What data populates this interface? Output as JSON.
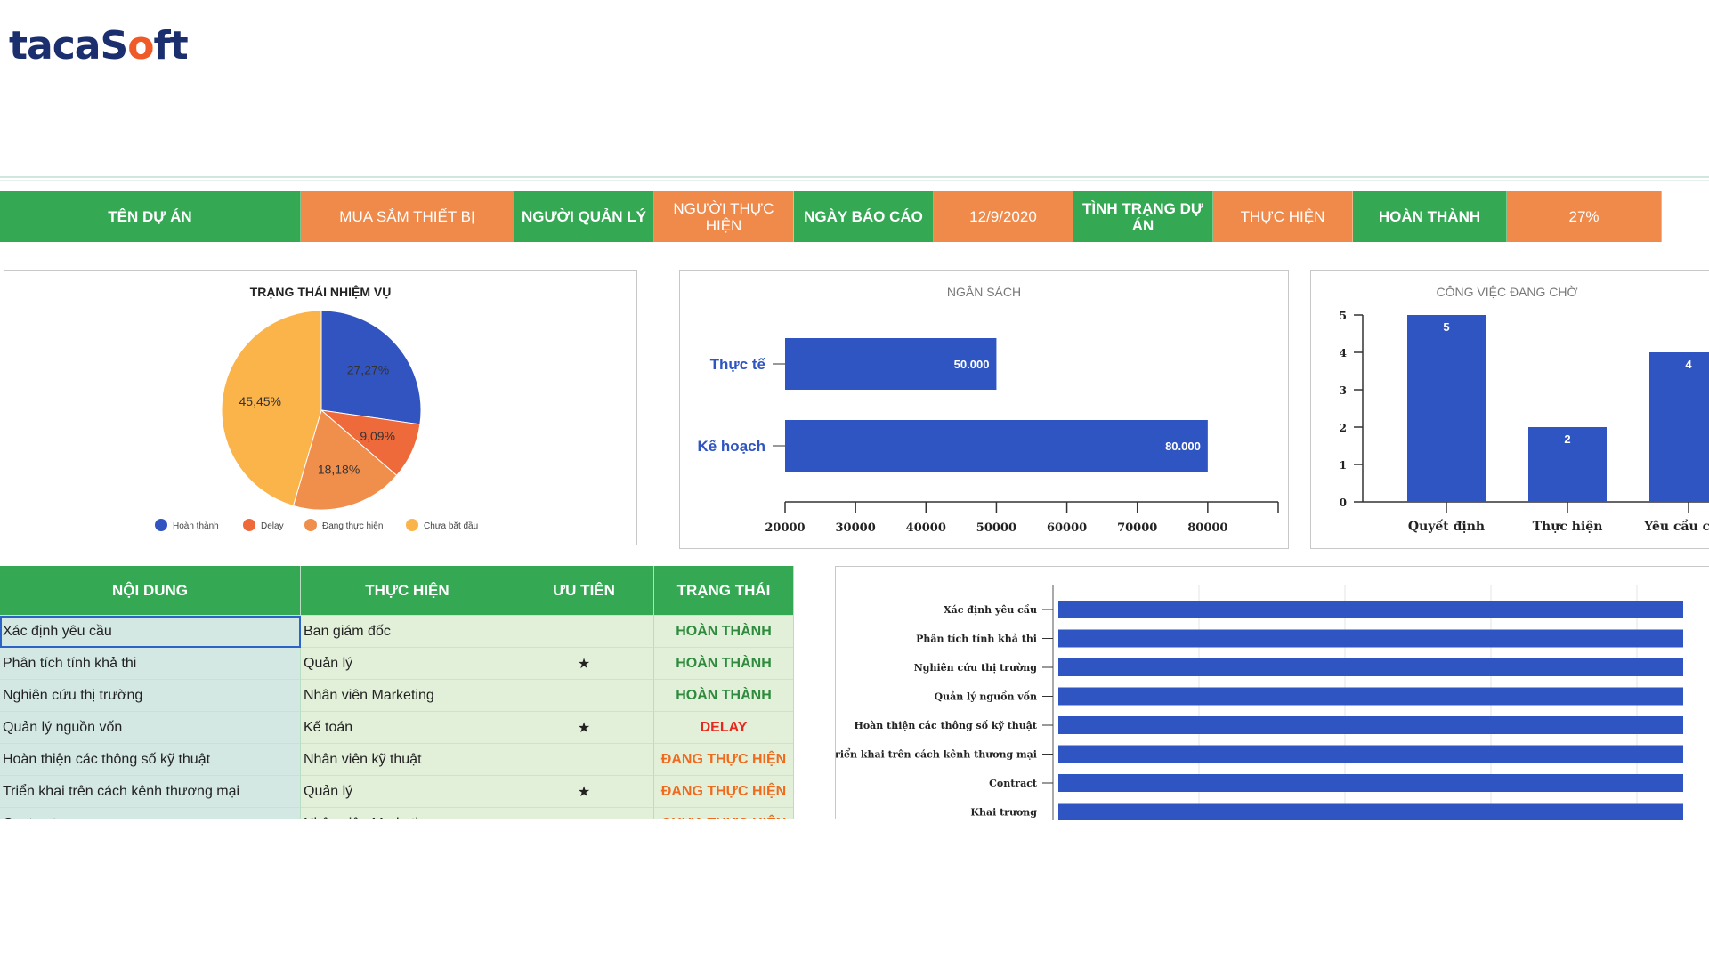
{
  "brand": {
    "logo_part1": "taca",
    "logo_part2": "S",
    "logo_o": "o",
    "logo_part3": "ft"
  },
  "header": [
    {
      "label": "TÊN DỰ ÁN",
      "style": "green",
      "w": 338
    },
    {
      "label": "MUA SẮM THIẾT BỊ",
      "style": "orange",
      "w": 240
    },
    {
      "label": "NGƯỜI QUẢN LÝ",
      "style": "green",
      "w": 157
    },
    {
      "label": "NGƯỜI THỰC HIỆN",
      "style": "orange",
      "w": 157
    },
    {
      "label": "NGÀY BÁO CÁO",
      "style": "green",
      "w": 157
    },
    {
      "label": "12/9/2020",
      "style": "orange",
      "w": 157
    },
    {
      "label": "TÌNH TRẠNG DỰ ÁN",
      "style": "green",
      "w": 157
    },
    {
      "label": "THỰC HIỆN",
      "style": "orange",
      "w": 157
    },
    {
      "label": "HOÀN THÀNH",
      "style": "green",
      "w": 173
    },
    {
      "label": "27%",
      "style": "orange",
      "w": 174
    }
  ],
  "pie": {
    "title": "TRẠNG THÁI NHIỆM VỤ",
    "chart_data": {
      "type": "pie",
      "slices": [
        {
          "name": "Hoàn thành",
          "value": 27.27,
          "label": "27,27%",
          "color": "#3254c1"
        },
        {
          "name": "Delay",
          "value": 9.09,
          "label": "9,09%",
          "color": "#ee6a3b"
        },
        {
          "name": "Đang thực hiện",
          "value": 18.18,
          "label": "18,18%",
          "color": "#f08e4c"
        },
        {
          "name": "Chưa bắt đầu",
          "value": 45.45,
          "label": "45,45%",
          "color": "#fbb449"
        }
      ]
    }
  },
  "budget": {
    "title": "NGÂN SÁCH",
    "chart_data": {
      "type": "bar",
      "orientation": "horizontal",
      "categories": [
        "Thực tế",
        "Kế hoạch"
      ],
      "values": [
        50000,
        80000
      ],
      "value_labels": [
        "50.000",
        "80.000"
      ],
      "xlim": [
        20000,
        90000
      ],
      "ticks": [
        20000,
        30000,
        40000,
        50000,
        60000,
        70000,
        80000
      ],
      "color": "#2f55c2"
    }
  },
  "pending": {
    "title": "CÔNG VIỆC ĐANG CHỜ",
    "chart_data": {
      "type": "bar",
      "categories": [
        "Quyết định",
        "Thực hiện",
        "Yêu cầu chín"
      ],
      "values": [
        5,
        2,
        4
      ],
      "ylim": [
        0,
        5
      ],
      "ticks": [
        0,
        1,
        2,
        3,
        4,
        5
      ],
      "color": "#2f55c2"
    }
  },
  "table": {
    "headers": [
      "NỘI DUNG",
      "THỰC HIỆN",
      "ƯU TIÊN",
      "TRẠNG THÁI"
    ],
    "rows": [
      {
        "content": "Xác định yêu cầu",
        "by": "Ban giám đốc",
        "priority": "",
        "status": "HOÀN THÀNH",
        "status_type": "green"
      },
      {
        "content": "Phân tích tính khả thi",
        "by": "Quản lý",
        "priority": "★",
        "status": "HOÀN THÀNH",
        "status_type": "green"
      },
      {
        "content": "Nghiên cứu thị trường",
        "by": "Nhân viên Marketing",
        "priority": "",
        "status": "HOÀN THÀNH",
        "status_type": "green"
      },
      {
        "content": "Quản lý nguồn vốn",
        "by": "Kế toán",
        "priority": "★",
        "status": "DELAY",
        "status_type": "red"
      },
      {
        "content": "Hoàn thiện các thông số kỹ thuật",
        "by": "Nhân viên kỹ thuật",
        "priority": "",
        "status": "ĐANG THỰC HIỆN",
        "status_type": "orange"
      },
      {
        "content": "Triển khai trên cách kênh thương mại",
        "by": "Quản lý",
        "priority": "★",
        "status": "ĐANG THỰC HIỆN",
        "status_type": "orange"
      },
      {
        "content": "Contract",
        "by": "Nhân viên Marketing",
        "priority": "",
        "status": "CHƯA THỰC HIỆN",
        "status_type": "orange"
      }
    ]
  },
  "gantt": {
    "chart_data": {
      "type": "bar",
      "orientation": "horizontal",
      "categories": [
        "Xác định yêu cầu",
        "Phân tích tính khả thi",
        "Nghiên cứu thị trường",
        "Quản lý nguồn vốn",
        "Hoàn thiện các thông số kỹ thuật",
        "Triển khai trên cách kênh thương mại",
        "Contract",
        "Khai trương"
      ],
      "values": [
        1,
        1,
        1,
        1,
        1,
        1,
        1,
        1
      ],
      "xlim": [
        0,
        1
      ],
      "color": "#2f55c2"
    }
  }
}
